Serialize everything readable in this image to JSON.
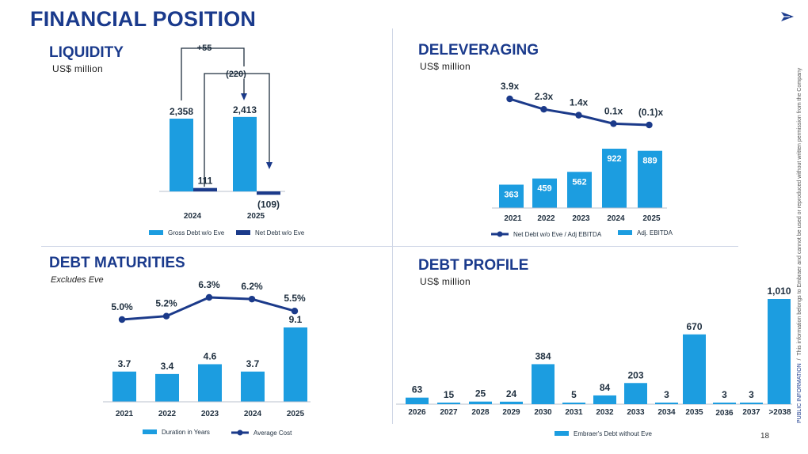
{
  "page": {
    "title": "FINANCIAL POSITION",
    "page_number": "18",
    "classification": "PUBLIC INFORMATION",
    "disclaimer": "This information belongs to Embraer and cannot be used or reproduced without written permission from the Company"
  },
  "colors": {
    "primary": "#1c9de0",
    "navy": "#1b3a8a",
    "title": "#1a3a8c"
  },
  "sections": {
    "liquidity": {
      "title": "LIQUIDITY",
      "subtitle": "US$ million"
    },
    "deleveraging": {
      "title": "DELEVERAGING",
      "subtitle": "US$ million"
    },
    "maturities": {
      "title": "DEBT MATURITIES",
      "subtitle": "Excludes Eve"
    },
    "profile": {
      "title": "DEBT PROFILE",
      "subtitle": "US$ million"
    }
  },
  "chart_data": [
    {
      "id": "liquidity",
      "type": "bar",
      "categories": [
        "2024",
        "2025"
      ],
      "series": [
        {
          "name": "Gross Debt w/o Eve",
          "values": [
            2358,
            2413
          ],
          "labels": [
            "2,358",
            "2,413"
          ]
        },
        {
          "name": "Net Debt w/o Eve",
          "values": [
            111,
            -109
          ],
          "labels": [
            "111",
            "(109)"
          ]
        }
      ],
      "annotations": [
        "+55",
        "(220)"
      ],
      "ylim": [
        -150,
        2600
      ]
    },
    {
      "id": "deleveraging",
      "type": "bar",
      "categories": [
        "2021",
        "2022",
        "2023",
        "2024",
        "2025"
      ],
      "series": [
        {
          "name": "Adj. EBITDA",
          "values": [
            363,
            459,
            562,
            922,
            889
          ],
          "labels": [
            "363",
            "459",
            "562",
            "922",
            "889"
          ]
        },
        {
          "name": "Net Debt w/o Eve / Adj EBITDA",
          "type": "line",
          "values": [
            3.9,
            2.3,
            1.4,
            0.1,
            -0.1
          ],
          "labels": [
            "3.9x",
            "2.3x",
            "1.4x",
            "0.1x",
            "(0.1)x"
          ]
        }
      ]
    },
    {
      "id": "maturities",
      "type": "bar",
      "categories": [
        "2021",
        "2022",
        "2023",
        "2024",
        "2025"
      ],
      "series": [
        {
          "name": "Duration in Years",
          "values": [
            3.7,
            3.4,
            4.6,
            3.7,
            9.1
          ],
          "labels": [
            "3.7",
            "3.4",
            "4.6",
            "3.7",
            "9.1"
          ]
        },
        {
          "name": "Average Cost",
          "type": "line",
          "values": [
            5.0,
            5.2,
            6.3,
            6.2,
            5.5
          ],
          "labels": [
            "5.0%",
            "5.2%",
            "6.3%",
            "6.2%",
            "5.5%"
          ]
        }
      ]
    },
    {
      "id": "profile",
      "type": "bar",
      "categories": [
        "2026",
        "2027",
        "2028",
        "2029",
        "2030",
        "2031",
        "2032",
        "2033",
        "2034",
        "2035",
        "2036",
        "2037",
        ">2038"
      ],
      "series": [
        {
          "name": "Embraer's Debt without Eve",
          "values": [
            63,
            15,
            25,
            24,
            384,
            5,
            84,
            203,
            3,
            670,
            3,
            3,
            1010
          ],
          "labels": [
            "63",
            "15",
            "25",
            "24",
            "384",
            "5",
            "84",
            "203",
            "3",
            "670",
            "3",
            "3",
            "1,010"
          ]
        }
      ],
      "ylim": [
        0,
        1050
      ]
    }
  ]
}
